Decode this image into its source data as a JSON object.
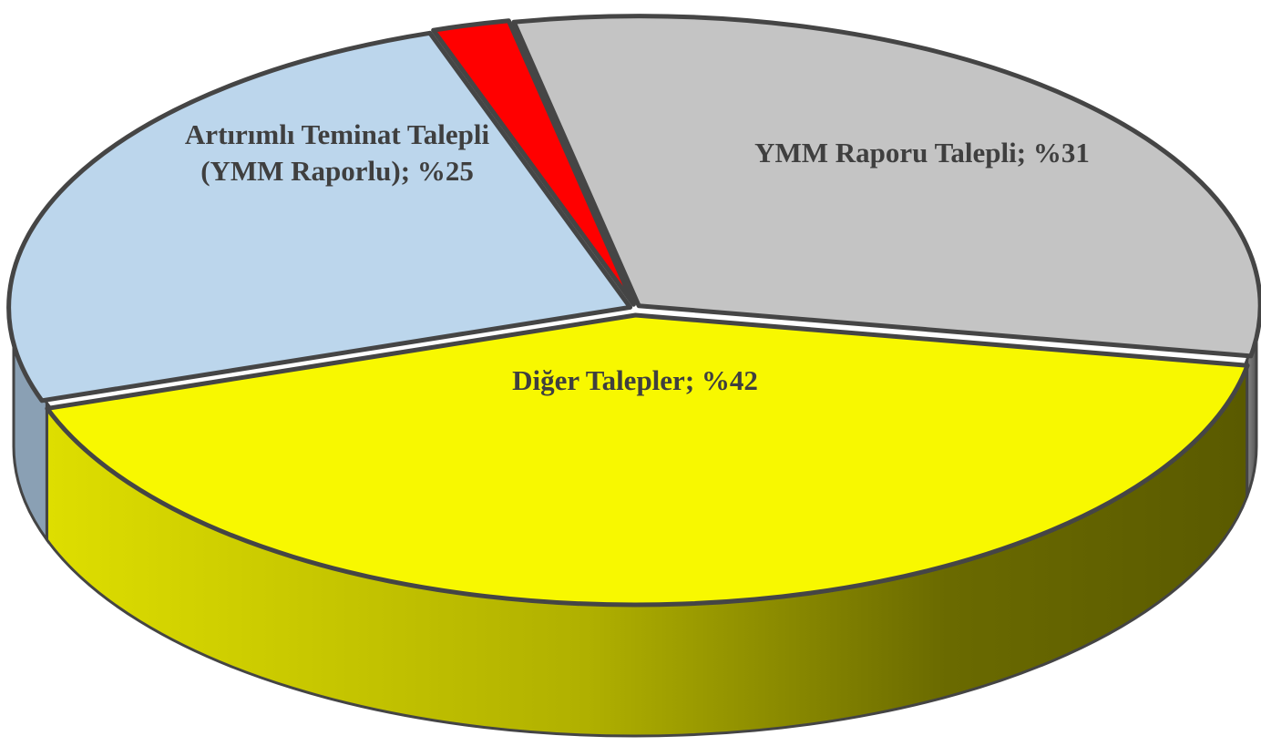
{
  "chart_data": {
    "type": "pie3d",
    "categories": [
      "YMM Raporu Talepli",
      "Diğer Talepler",
      "Artırımlı Teminat Talepli (YMM Raporlu)",
      null
    ],
    "values": [
      31,
      42,
      25,
      2
    ],
    "value_labels": [
      "%31",
      "%42",
      "%25",
      null
    ],
    "label_separator": "; ",
    "colors": [
      "#c4c4c4",
      "#f8f800",
      "#bcd6ec",
      "#ff0000"
    ]
  }
}
